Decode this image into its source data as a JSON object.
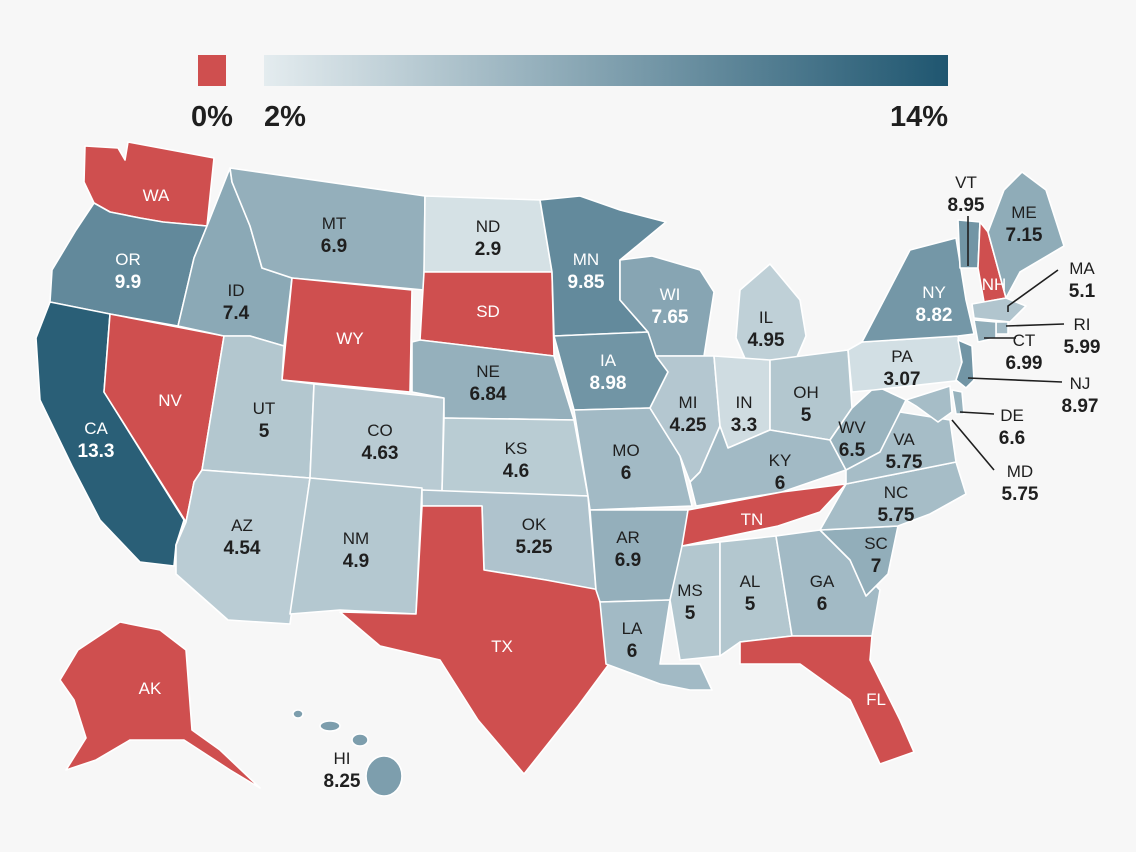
{
  "legend": {
    "zero_label": "0%",
    "min_label": "2%",
    "max_label": "14%",
    "zero_color": "#cf4f4f",
    "gradient_start": "#e4ecef",
    "gradient_end": "#1f5670"
  },
  "states": [
    {
      "abbr": "WA",
      "value": "",
      "rate": 0
    },
    {
      "abbr": "OR",
      "value": "9.9",
      "rate": 9.9
    },
    {
      "abbr": "CA",
      "value": "13.3",
      "rate": 13.3
    },
    {
      "abbr": "NV",
      "value": "",
      "rate": 0
    },
    {
      "abbr": "ID",
      "value": "7.4",
      "rate": 7.4
    },
    {
      "abbr": "MT",
      "value": "6.9",
      "rate": 6.9
    },
    {
      "abbr": "WY",
      "value": "",
      "rate": 0
    },
    {
      "abbr": "UT",
      "value": "5",
      "rate": 5
    },
    {
      "abbr": "AZ",
      "value": "4.54",
      "rate": 4.54
    },
    {
      "abbr": "CO",
      "value": "4.63",
      "rate": 4.63
    },
    {
      "abbr": "NM",
      "value": "4.9",
      "rate": 4.9
    },
    {
      "abbr": "ND",
      "value": "2.9",
      "rate": 2.9
    },
    {
      "abbr": "SD",
      "value": "",
      "rate": 0
    },
    {
      "abbr": "NE",
      "value": "6.84",
      "rate": 6.84
    },
    {
      "abbr": "KS",
      "value": "4.6",
      "rate": 4.6
    },
    {
      "abbr": "OK",
      "value": "5.25",
      "rate": 5.25
    },
    {
      "abbr": "TX",
      "value": "",
      "rate": 0
    },
    {
      "abbr": "MN",
      "value": "9.85",
      "rate": 9.85
    },
    {
      "abbr": "IA",
      "value": "8.98",
      "rate": 8.98
    },
    {
      "abbr": "MO",
      "value": "6",
      "rate": 6
    },
    {
      "abbr": "AR",
      "value": "6.9",
      "rate": 6.9
    },
    {
      "abbr": "LA",
      "value": "6",
      "rate": 6
    },
    {
      "abbr": "WI",
      "value": "7.65",
      "rate": 7.65
    },
    {
      "abbr": "IL",
      "value": "4.95",
      "rate": 4.95
    },
    {
      "abbr": "MI",
      "value": "4.25",
      "rate": 4.25
    },
    {
      "abbr": "IN",
      "value": "3.3",
      "rate": 3.3
    },
    {
      "abbr": "OH",
      "value": "5",
      "rate": 5
    },
    {
      "abbr": "KY",
      "value": "6",
      "rate": 6
    },
    {
      "abbr": "TN",
      "value": "",
      "rate": 0
    },
    {
      "abbr": "MS",
      "value": "5",
      "rate": 5
    },
    {
      "abbr": "AL",
      "value": "5",
      "rate": 5
    },
    {
      "abbr": "GA",
      "value": "6",
      "rate": 6
    },
    {
      "abbr": "FL",
      "value": "",
      "rate": 0
    },
    {
      "abbr": "SC",
      "value": "7",
      "rate": 7
    },
    {
      "abbr": "NC",
      "value": "5.75",
      "rate": 5.75
    },
    {
      "abbr": "VA",
      "value": "5.75",
      "rate": 5.75
    },
    {
      "abbr": "WV",
      "value": "6.5",
      "rate": 6.5
    },
    {
      "abbr": "PA",
      "value": "3.07",
      "rate": 3.07
    },
    {
      "abbr": "NY",
      "value": "8.82",
      "rate": 8.82
    },
    {
      "abbr": "VT",
      "value": "8.95",
      "rate": 8.95
    },
    {
      "abbr": "NH",
      "value": "",
      "rate": 0
    },
    {
      "abbr": "ME",
      "value": "7.15",
      "rate": 7.15
    },
    {
      "abbr": "MA",
      "value": "5.1",
      "rate": 5.1
    },
    {
      "abbr": "RI",
      "value": "5.99",
      "rate": 5.99
    },
    {
      "abbr": "CT",
      "value": "6.99",
      "rate": 6.99
    },
    {
      "abbr": "NJ",
      "value": "8.97",
      "rate": 8.97
    },
    {
      "abbr": "DE",
      "value": "6.6",
      "rate": 6.6
    },
    {
      "abbr": "MD",
      "value": "5.75",
      "rate": 5.75
    },
    {
      "abbr": "AK",
      "value": "",
      "rate": 0
    },
    {
      "abbr": "HI",
      "value": "8.25",
      "rate": 8.25
    }
  ]
}
